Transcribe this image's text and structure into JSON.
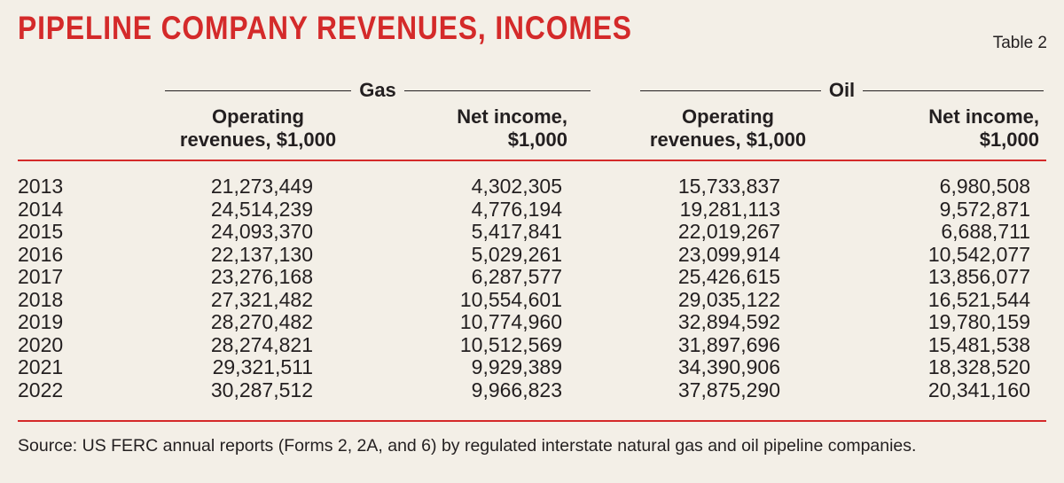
{
  "title": "PIPELINE COMPANY REVENUES, INCOMES",
  "table_label": "Table 2",
  "groups": {
    "gas": "Gas",
    "oil": "Oil"
  },
  "columns": {
    "gas_revenues": {
      "line1": "Operating",
      "line2": "revenues, $1,000"
    },
    "gas_net_income": {
      "line1": "Net income,",
      "line2": "$1,000"
    },
    "oil_revenues": {
      "line1": "Operating",
      "line2": "revenues, $1,000"
    },
    "oil_net_income": {
      "line1": "Net income,",
      "line2": "$1,000"
    }
  },
  "rows": [
    {
      "year": "2013",
      "gas_rev": "21,273,449",
      "gas_ni": "4,302,305",
      "oil_rev": "15,733,837",
      "oil_ni": "6,980,508"
    },
    {
      "year": "2014",
      "gas_rev": "24,514,239",
      "gas_ni": "4,776,194",
      "oil_rev": "19,281,113",
      "oil_ni": "9,572,871"
    },
    {
      "year": "2015",
      "gas_rev": "24,093,370",
      "gas_ni": "5,417,841",
      "oil_rev": "22,019,267",
      "oil_ni": "6,688,711"
    },
    {
      "year": "2016",
      "gas_rev": "22,137,130",
      "gas_ni": "5,029,261",
      "oil_rev": "23,099,914",
      "oil_ni": "10,542,077"
    },
    {
      "year": "2017",
      "gas_rev": "23,276,168",
      "gas_ni": "6,287,577",
      "oil_rev": "25,426,615",
      "oil_ni": "13,856,077"
    },
    {
      "year": "2018",
      "gas_rev": "27,321,482",
      "gas_ni": "10,554,601",
      "oil_rev": "29,035,122",
      "oil_ni": "16,521,544"
    },
    {
      "year": "2019",
      "gas_rev": "28,270,482",
      "gas_ni": "10,774,960",
      "oil_rev": "32,894,592",
      "oil_ni": "19,780,159"
    },
    {
      "year": "2020",
      "gas_rev": "28,274,821",
      "gas_ni": "10,512,569",
      "oil_rev": "31,897,696",
      "oil_ni": "15,481,538"
    },
    {
      "year": "2021",
      "gas_rev": "29,321,511",
      "gas_ni": "9,929,389",
      "oil_rev": "34,390,906",
      "oil_ni": "18,328,520"
    },
    {
      "year": "2022",
      "gas_rev": "30,287,512",
      "gas_ni": "9,966,823",
      "oil_rev": "37,875,290",
      "oil_ni": "20,341,160"
    }
  ],
  "source": "Source: US FERC annual reports (Forms 2, 2A, and 6) by regulated interstate natural gas and oil pipeline companies.",
  "colors": {
    "accent": "#d42a2a",
    "background": "#f3efe7",
    "text": "#231f20"
  }
}
